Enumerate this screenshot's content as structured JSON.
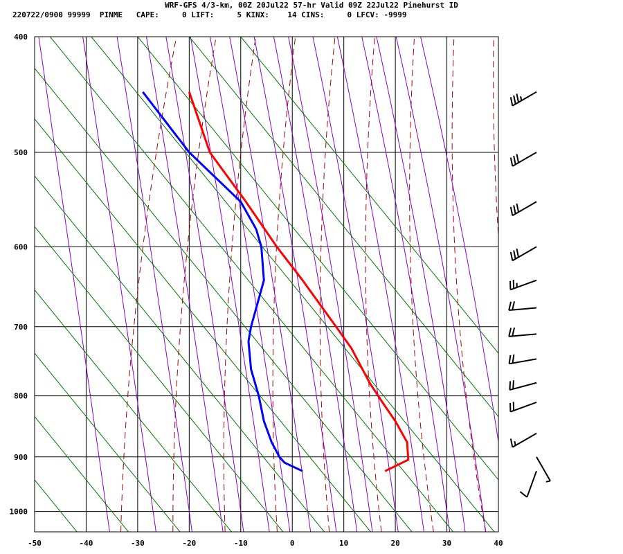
{
  "header": {
    "title": "WRF-GFS 4/3-km, 00Z 20Jul22 57-hr Valid 09Z 22Jul22 Pinehurst ID",
    "indices": "220722/0900 99999  PINME   CAPE:     0 LIFT:     5 KINX:    14 CINS:     0 LFCV: -9999"
  },
  "colors": {
    "temperature": "#ff0000",
    "dewpoint": "#0000ff",
    "dry_adiabat": "#aa0000",
    "moist_adiabat": "#8800cc",
    "mixing_ratio": "#007700",
    "grid": "#000000"
  },
  "chart_data": {
    "type": "line",
    "xlim": [
      -50,
      40
    ],
    "ylim": [
      1040,
      400
    ],
    "x_ticks": [
      -50,
      -40,
      -30,
      -20,
      -10,
      0,
      10,
      20,
      30,
      40
    ],
    "x_tick_labels": [
      "-50",
      "-40",
      "-30",
      "-20",
      "-10",
      "0",
      "10",
      "20",
      "30",
      "40"
    ],
    "y_ticks": [
      400,
      500,
      600,
      700,
      800,
      900,
      1000
    ],
    "y_tick_labels": [
      "400",
      "500",
      "600",
      "700",
      "800",
      "900",
      "1000"
    ],
    "y_scale": "log",
    "grid": true,
    "series": [
      {
        "key": "temperature",
        "p": [
          925,
          905,
          875,
          840,
          810,
          780,
          730,
          700,
          640,
          600,
          550,
          500,
          445
        ],
        "x": [
          18,
          22.5,
          22.3,
          20,
          17.5,
          15,
          11.5,
          8.5,
          2,
          -3,
          -9,
          -16,
          -20
        ]
      },
      {
        "key": "dewpoint",
        "p": [
          925,
          910,
          900,
          875,
          840,
          800,
          760,
          720,
          700,
          640,
          600,
          580,
          550,
          500,
          445
        ],
        "x": [
          2,
          -1.5,
          -2.5,
          -4,
          -5.5,
          -6.5,
          -8,
          -8.5,
          -8,
          -5.5,
          -6,
          -7,
          -10,
          -20,
          -29
        ]
      }
    ],
    "dry_adiabat_theta_k": [
      240,
      250,
      260,
      270,
      280,
      290,
      300,
      310,
      320,
      330,
      340,
      350,
      360,
      370,
      380,
      390,
      400,
      410,
      420
    ],
    "moist_adiabat_x_at_1000": [
      -36,
      -27,
      -20,
      -14,
      -10,
      -5,
      -1,
      3,
      8,
      12,
      15,
      20,
      25,
      30,
      33,
      37,
      42
    ],
    "mixing_ratio_x_at_1000": [
      -45,
      -35,
      -25,
      -15,
      -5,
      3,
      12,
      20,
      28,
      36,
      45,
      55,
      65
    ],
    "wind_barbs": [
      {
        "p": 445,
        "dir": 240,
        "kt": 35
      },
      {
        "p": 500,
        "dir": 240,
        "kt": 30
      },
      {
        "p": 550,
        "dir": 240,
        "kt": 30
      },
      {
        "p": 600,
        "dir": 240,
        "kt": 30
      },
      {
        "p": 640,
        "dir": 250,
        "kt": 25
      },
      {
        "p": 675,
        "dir": 265,
        "kt": 20
      },
      {
        "p": 710,
        "dir": 265,
        "kt": 20
      },
      {
        "p": 745,
        "dir": 260,
        "kt": 20
      },
      {
        "p": 780,
        "dir": 255,
        "kt": 20
      },
      {
        "p": 810,
        "dir": 250,
        "kt": 20
      },
      {
        "p": 860,
        "dir": 240,
        "kt": 15
      },
      {
        "p": 900,
        "dir": 150,
        "kt": 5
      },
      {
        "p": 925,
        "dir": 200,
        "kt": 10
      }
    ]
  }
}
